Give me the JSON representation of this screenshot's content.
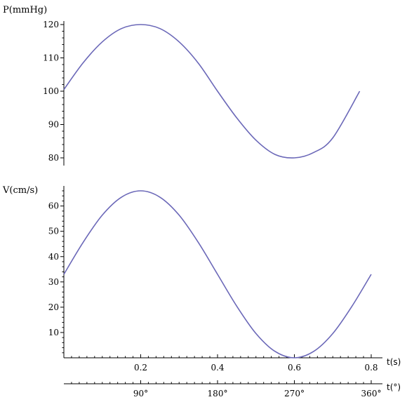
{
  "chart_data": [
    {
      "type": "line",
      "ylabel": "P(mmHg)",
      "xlabel": "",
      "xlim": [
        0,
        0.78
      ],
      "ylim": [
        78,
        120.5
      ],
      "yticks": [
        80,
        90,
        100,
        110,
        120
      ],
      "series": [
        {
          "color": "#6b68b8",
          "x": [
            0,
            0.05,
            0.1,
            0.15,
            0.2,
            0.25,
            0.3,
            0.35,
            0.4,
            0.45,
            0.5,
            0.55,
            0.6,
            0.65,
            0.7,
            0.77
          ],
          "values": [
            100.5,
            108.5,
            114.8,
            118.8,
            120,
            118.8,
            114.8,
            108.4,
            100,
            92,
            85.3,
            81,
            80,
            81.6,
            86,
            100
          ]
        }
      ]
    },
    {
      "type": "line",
      "ylabel": "V(cm/s)",
      "xlabel": "t(s)",
      "xlim": [
        0,
        0.8
      ],
      "ylim": [
        0,
        68
      ],
      "xticks": [
        0.2,
        0.4,
        0.6,
        0.8
      ],
      "yticks": [
        10,
        20,
        30,
        40,
        50,
        60
      ],
      "series": [
        {
          "color": "#6b68b8",
          "x": [
            0,
            0.05,
            0.1,
            0.15,
            0.2,
            0.25,
            0.3,
            0.35,
            0.4,
            0.45,
            0.5,
            0.55,
            0.6,
            0.65,
            0.7,
            0.75,
            0.8
          ],
          "values": [
            33,
            45.6,
            56.4,
            63.5,
            66,
            63.5,
            56.4,
            45.6,
            33,
            20.4,
            9.6,
            2.5,
            0,
            2.5,
            9.6,
            20.4,
            33
          ]
        }
      ]
    },
    {
      "type": "axis",
      "xlabel": "t(°)",
      "xlim": [
        0,
        360
      ],
      "xticks": [
        90,
        180,
        270,
        360
      ],
      "ticklabels": [
        "90°",
        "180°",
        "270°",
        "360°"
      ]
    }
  ]
}
